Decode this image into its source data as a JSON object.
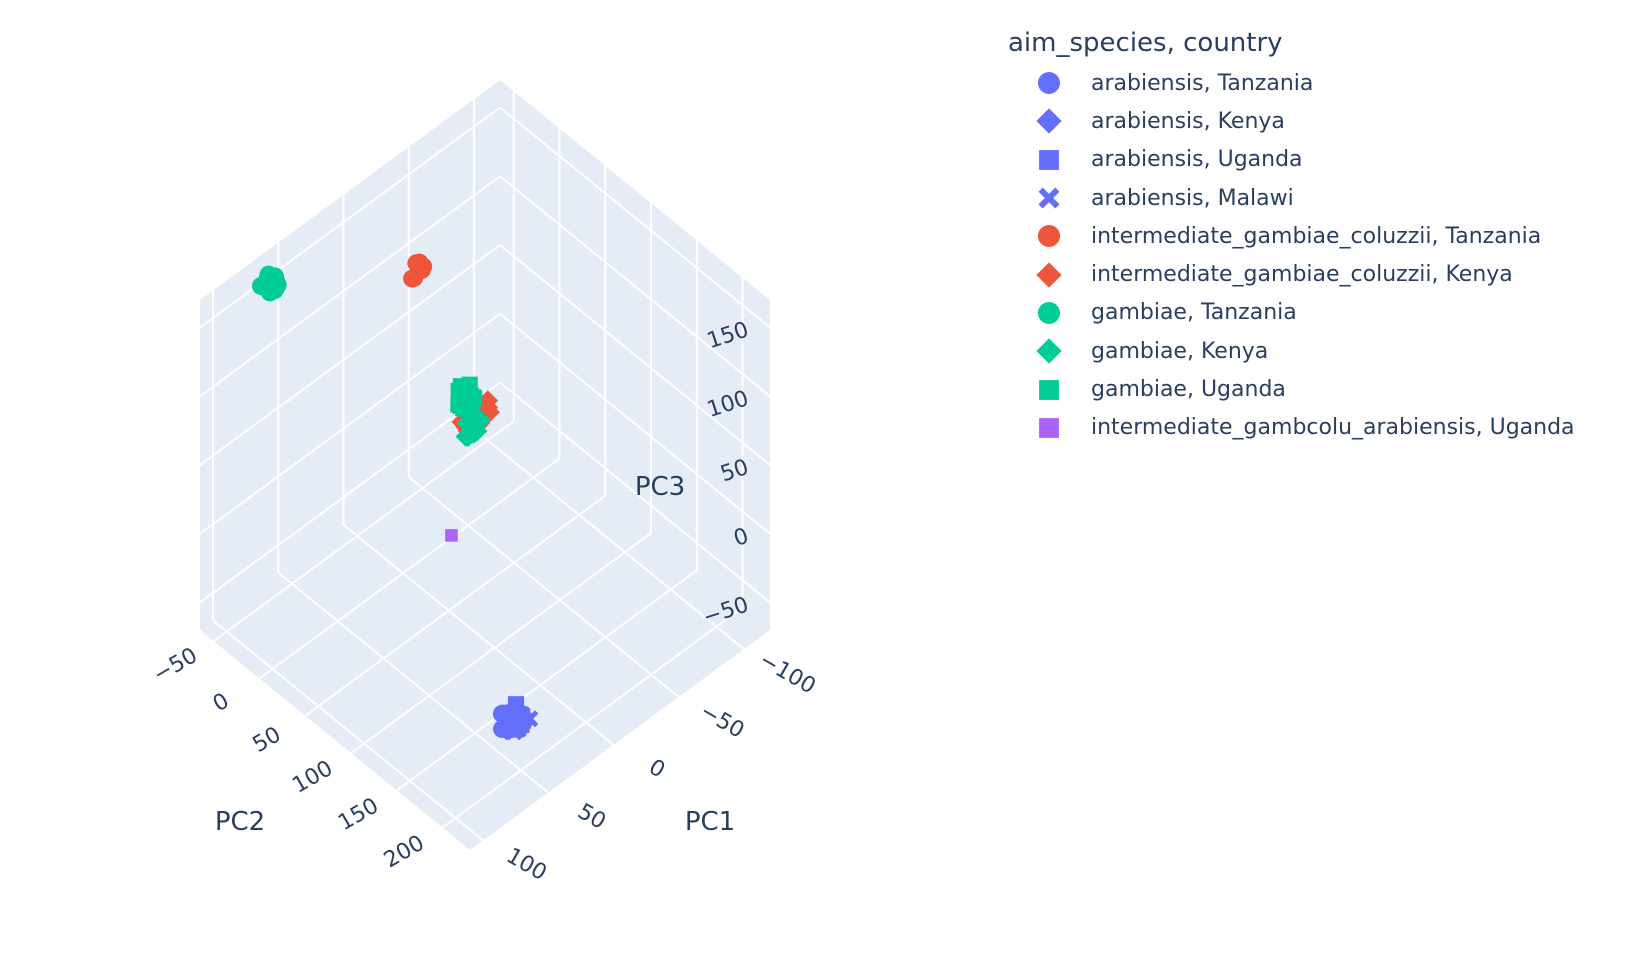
{
  "chart_data": {
    "type": "scatter3d",
    "legend_title": "aim_species, country",
    "legend_placement": "right",
    "axes": {
      "x": {
        "label": "PC1",
        "range": [
          -120,
          110
        ],
        "ticks": [
          -100,
          -50,
          0,
          50,
          100
        ]
      },
      "y": {
        "label": "PC2",
        "range": [
          -65,
          230
        ],
        "ticks": [
          -50,
          0,
          50,
          100,
          150,
          200
        ]
      },
      "z": {
        "label": "PC3",
        "range": [
          -70,
          170
        ],
        "ticks": [
          -50,
          0,
          50,
          100,
          150
        ]
      }
    },
    "background": "#e5ecf6",
    "grid": true,
    "series": [
      {
        "name": "arabiensis, Tanzania",
        "symbol": "circle",
        "color": "#636efa",
        "cluster": {
          "center": [
            55,
            200,
            -30
          ],
          "spread": [
            5,
            6,
            4
          ],
          "count": 40
        }
      },
      {
        "name": "arabiensis, Kenya",
        "symbol": "diamond",
        "color": "#636efa",
        "cluster": {
          "center": [
            55,
            200,
            -30
          ],
          "spread": [
            5,
            6,
            4
          ],
          "count": 30
        }
      },
      {
        "name": "arabiensis, Uganda",
        "symbol": "square",
        "color": "#636efa",
        "cluster": {
          "center": [
            55,
            200,
            -30
          ],
          "spread": [
            5,
            6,
            4
          ],
          "count": 25
        }
      },
      {
        "name": "arabiensis, Malawi",
        "symbol": "x",
        "color": "#636efa",
        "cluster": {
          "center": [
            55,
            200,
            -30
          ],
          "spread": [
            5,
            6,
            4
          ],
          "count": 70
        }
      },
      {
        "name": "intermediate_gambiae_coluzzii, Tanzania",
        "symbol": "circle",
        "color": "#ef553b",
        "cluster": {
          "center": [
            -25,
            -20,
            120
          ],
          "spread": [
            6,
            5,
            6
          ],
          "count": 7
        }
      },
      {
        "name": "intermediate_gambiae_coluzzii, Kenya",
        "symbol": "diamond",
        "color": "#ef553b",
        "cluster": {
          "center": [
            -75,
            -30,
            -25
          ],
          "spread": [
            10,
            8,
            10
          ],
          "count": 45
        }
      },
      {
        "name": "gambiae, Tanzania",
        "symbol": "circle",
        "color": "#00cc96",
        "cluster": {
          "center": [
            70,
            -45,
            165
          ],
          "spread": [
            4,
            4,
            5
          ],
          "count": 40
        }
      },
      {
        "name": "gambiae, Kenya",
        "symbol": "diamond",
        "color": "#00cc96",
        "cluster": {
          "center": [
            -70,
            -25,
            -25
          ],
          "spread": [
            8,
            6,
            8
          ],
          "count": 10
        }
      },
      {
        "name": "gambiae, Uganda",
        "symbol": "square",
        "color": "#00cc96",
        "cluster": {
          "center": [
            -5,
            60,
            85
          ],
          "spread": [
            5,
            5,
            6
          ],
          "count": 60
        }
      },
      {
        "name": "intermediate_gambcolu_arabiensis, Uganda",
        "symbol": "square",
        "color": "#ab63fa",
        "cluster": {
          "center": [
            40,
            110,
            45
          ],
          "spread": [
            0,
            0,
            0
          ],
          "count": 1
        }
      }
    ]
  }
}
